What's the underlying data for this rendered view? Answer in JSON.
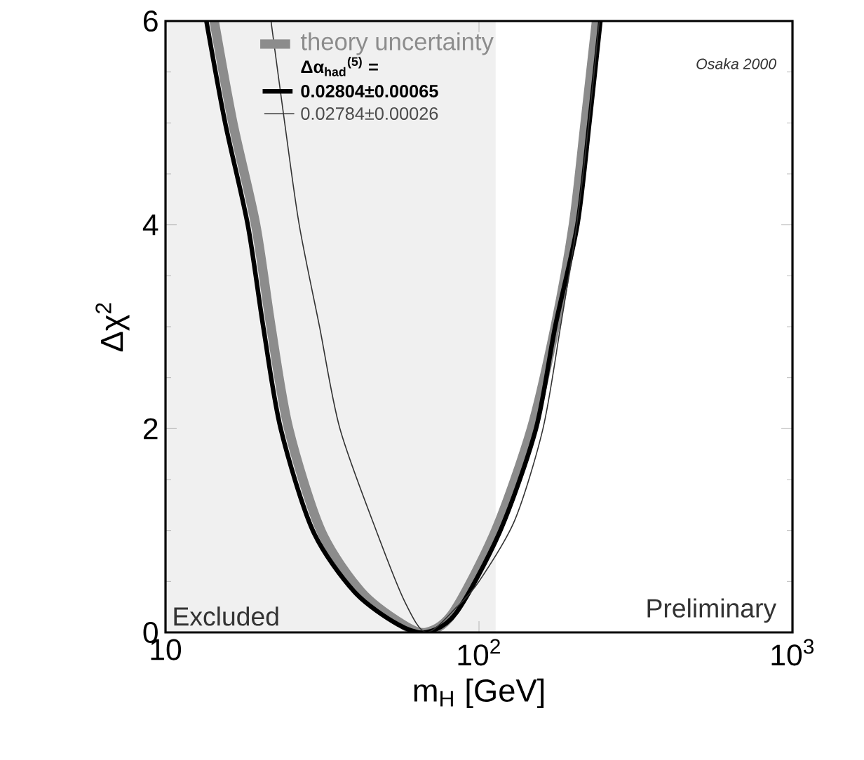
{
  "chart_data": {
    "type": "line",
    "xlabel": "m$_{H}$ [GeV]",
    "ylabel": "Δχ$^{2}$",
    "legend_title": "Δα$_{had}$$^{(5)}$ =",
    "log": "x",
    "legend": "top",
    "grid": false,
    "marker": "none",
    "line_style": "solid",
    "xlim": [
      10,
      1000
    ],
    "xticks": [
      10,
      {
        "value": 100,
        "label": "10$^{2}$"
      },
      {
        "value": 1000,
        "label": "10$^{3}$"
      }
    ],
    "ylim": [
      0,
      6
    ],
    "yticks": [
      0,
      2,
      4,
      6
    ],
    "bands": [
      {
        "axis": "x",
        "from": 10,
        "to": 113,
        "label": "Excluded",
        "color": "#f0f0f0"
      }
    ],
    "annotations": [
      "Osaka 2000",
      "Preliminary"
    ],
    "series": [
      {
        "name": "theory uncertainty",
        "color": "#8c8c8c",
        "x": [
          14.3,
          16.4,
          19.4,
          21.7,
          24.7,
          31.3,
          42,
          57,
          68,
          83,
          113,
          147,
          175,
          200,
          218,
          237
        ],
        "values": [
          6,
          5,
          4,
          3,
          2,
          1,
          0.4,
          0.08,
          0,
          0.2,
          1,
          2,
          3,
          4,
          5,
          6
        ]
      },
      {
        "name": "0.02804±0.00065",
        "color": "#000000",
        "x": [
          13.5,
          15.5,
          18.3,
          20.5,
          23.3,
          29.5,
          40,
          55,
          68,
          85,
          117,
          152,
          175,
          206,
          225,
          244
        ],
        "values": [
          6,
          5,
          4,
          3,
          2,
          1,
          0.4,
          0.08,
          0,
          0.2,
          1,
          2,
          3,
          4,
          5,
          6
        ]
      },
      {
        "name": "0.02784±0.00026",
        "color": "#333333",
        "x": [
          21.7,
          24,
          26.7,
          31,
          36,
          47,
          58,
          68,
          85,
          100,
          130,
          160,
          182,
          205,
          224,
          242
        ],
        "values": [
          6,
          5,
          4,
          3,
          2,
          1,
          0.3,
          0,
          0.25,
          0.5,
          1.1,
          2,
          3,
          4,
          5,
          6
        ]
      }
    ]
  }
}
